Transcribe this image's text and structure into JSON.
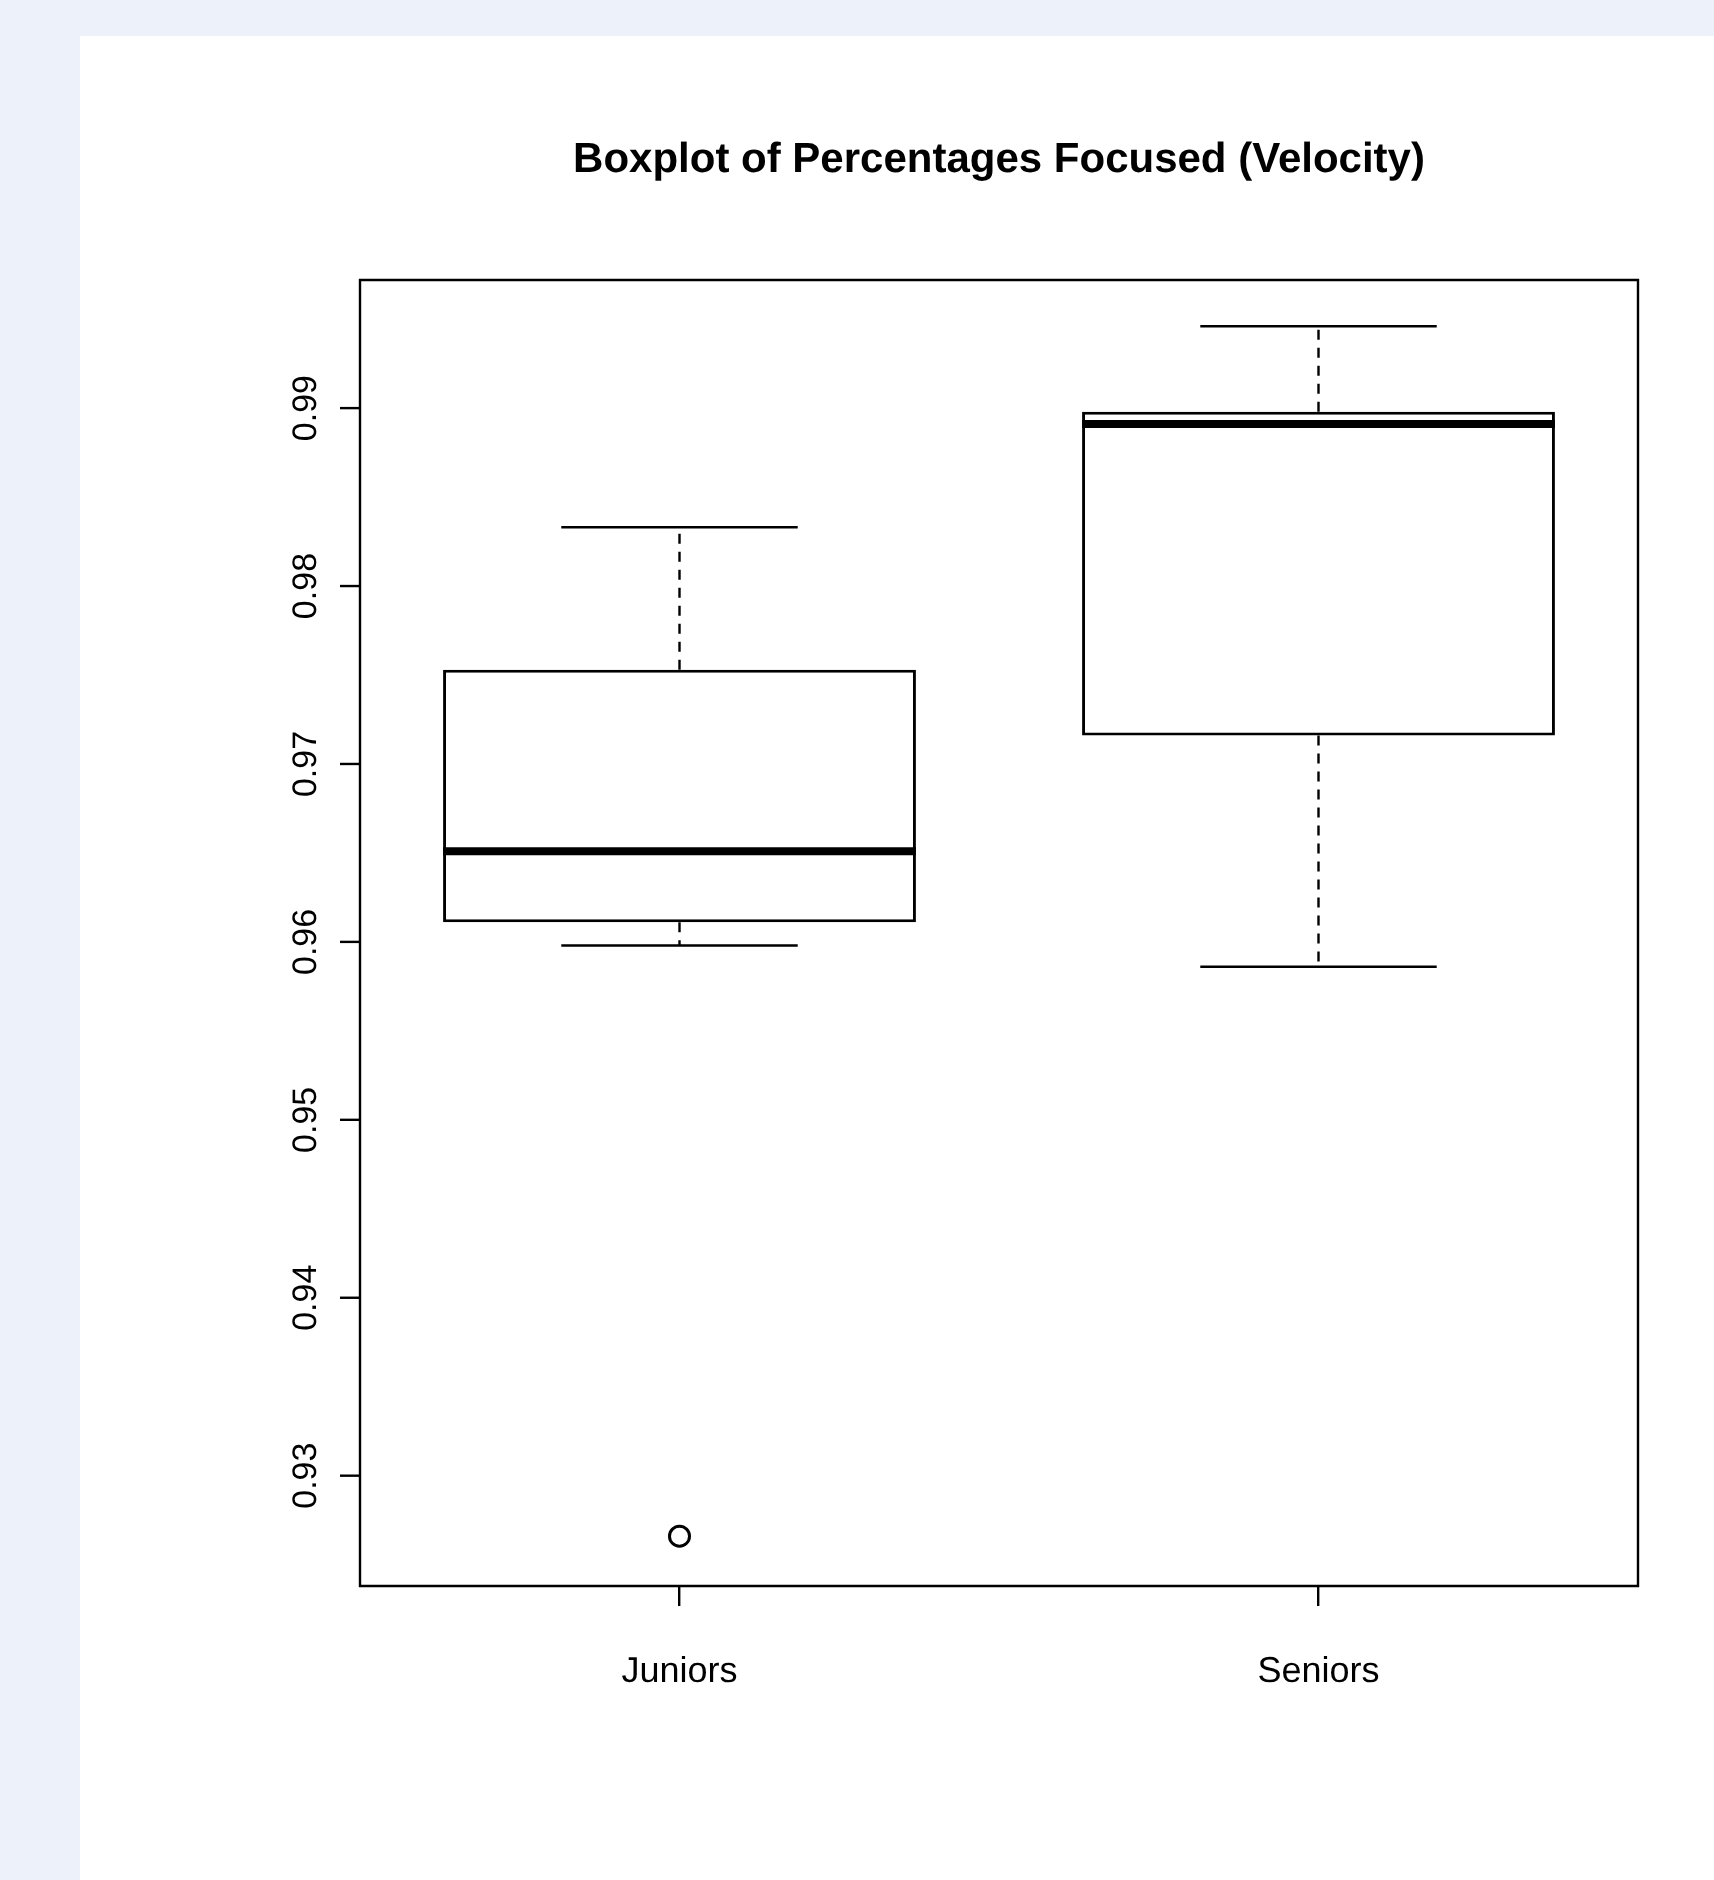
{
  "chart_data": {
    "type": "box",
    "title": "Boxplot of Percentages Focused (Velocity)",
    "categories": [
      "Juniors",
      "Seniors"
    ],
    "boxes": [
      {
        "low": 0.9598,
        "q1": 0.9611,
        "median": 0.9651,
        "q3": 0.9753,
        "high": 0.9833,
        "outliers": [
          0.9266
        ]
      },
      {
        "low": 0.9586,
        "q1": 0.9716,
        "median": 0.9891,
        "q3": 0.9898,
        "high": 0.9946
      }
    ],
    "ylim": [
      0.9238,
      0.9972
    ],
    "yticks": [
      0.93,
      0.94,
      0.95,
      0.96,
      0.97,
      0.98,
      0.99
    ]
  }
}
